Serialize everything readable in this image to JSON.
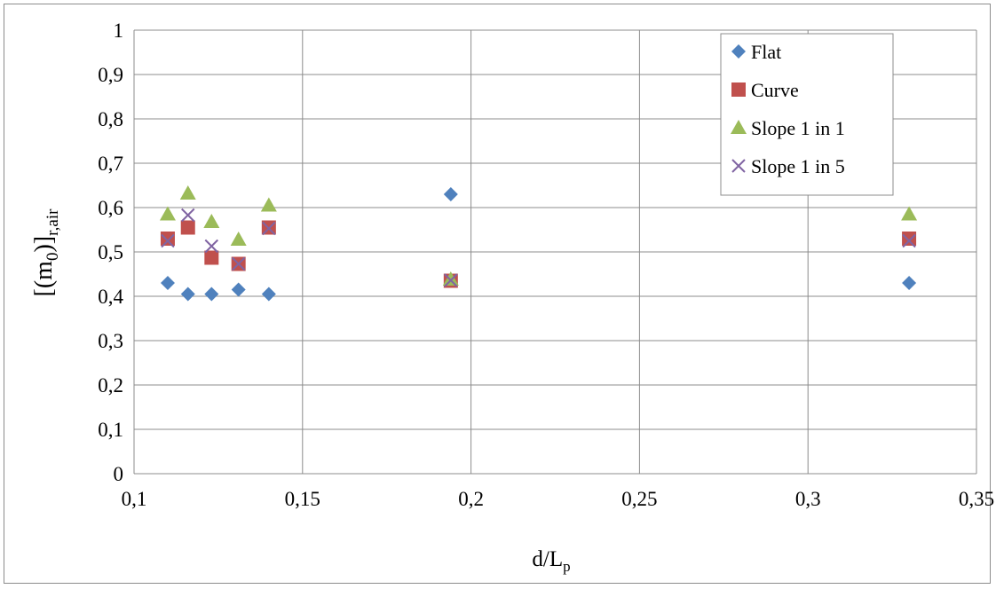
{
  "chart_data": {
    "type": "scatter",
    "xlabel": {
      "main": "d/L",
      "sub": "p"
    },
    "ylabel": {
      "main": "[(m",
      "sub1": "0",
      "mid": ")]",
      "sub2": "r,air"
    },
    "xlim": [
      0.1,
      0.35
    ],
    "ylim": [
      0,
      1
    ],
    "x_ticks": [
      {
        "value": 0.1,
        "label": "0,1"
      },
      {
        "value": 0.15,
        "label": "0,15"
      },
      {
        "value": 0.2,
        "label": "0,2"
      },
      {
        "value": 0.25,
        "label": "0,25"
      },
      {
        "value": 0.3,
        "label": "0,3"
      },
      {
        "value": 0.35,
        "label": "0,35"
      }
    ],
    "y_ticks": [
      {
        "value": 0,
        "label": "0"
      },
      {
        "value": 0.1,
        "label": "0,1"
      },
      {
        "value": 0.2,
        "label": "0,2"
      },
      {
        "value": 0.3,
        "label": "0,3"
      },
      {
        "value": 0.4,
        "label": "0,4"
      },
      {
        "value": 0.5,
        "label": "0,5"
      },
      {
        "value": 0.6,
        "label": "0,6"
      },
      {
        "value": 0.7,
        "label": "0,7"
      },
      {
        "value": 0.8,
        "label": "0,8"
      },
      {
        "value": 0.9,
        "label": "0,9"
      },
      {
        "value": 1,
        "label": "1"
      }
    ],
    "grid": true,
    "legend_position": "top-right",
    "series": [
      {
        "name": "Flat",
        "marker": "diamond",
        "color": "#4f81bd",
        "points": [
          [
            0.11,
            0.43
          ],
          [
            0.116,
            0.405
          ],
          [
            0.123,
            0.405
          ],
          [
            0.131,
            0.415
          ],
          [
            0.14,
            0.405
          ],
          [
            0.194,
            0.63
          ],
          [
            0.33,
            0.43
          ]
        ]
      },
      {
        "name": "Curve",
        "marker": "square",
        "color": "#c0504d",
        "points": [
          [
            0.11,
            0.53
          ],
          [
            0.116,
            0.555
          ],
          [
            0.123,
            0.487
          ],
          [
            0.131,
            0.473
          ],
          [
            0.14,
            0.555
          ],
          [
            0.194,
            0.435
          ],
          [
            0.33,
            0.53
          ]
        ]
      },
      {
        "name": "Slope 1 in 1",
        "marker": "triangle",
        "color": "#9bbb59",
        "points": [
          [
            0.11,
            0.585
          ],
          [
            0.116,
            0.632
          ],
          [
            0.123,
            0.568
          ],
          [
            0.131,
            0.528
          ],
          [
            0.14,
            0.605
          ],
          [
            0.194,
            0.438
          ],
          [
            0.33,
            0.585
          ]
        ]
      },
      {
        "name": "Slope 1 in 5",
        "marker": "x",
        "color": "#8064a2",
        "points": [
          [
            0.11,
            0.525
          ],
          [
            0.116,
            0.583
          ],
          [
            0.123,
            0.513
          ],
          [
            0.131,
            0.473
          ],
          [
            0.14,
            0.553
          ],
          [
            0.194,
            0.436
          ],
          [
            0.33,
            0.525
          ]
        ]
      }
    ]
  }
}
